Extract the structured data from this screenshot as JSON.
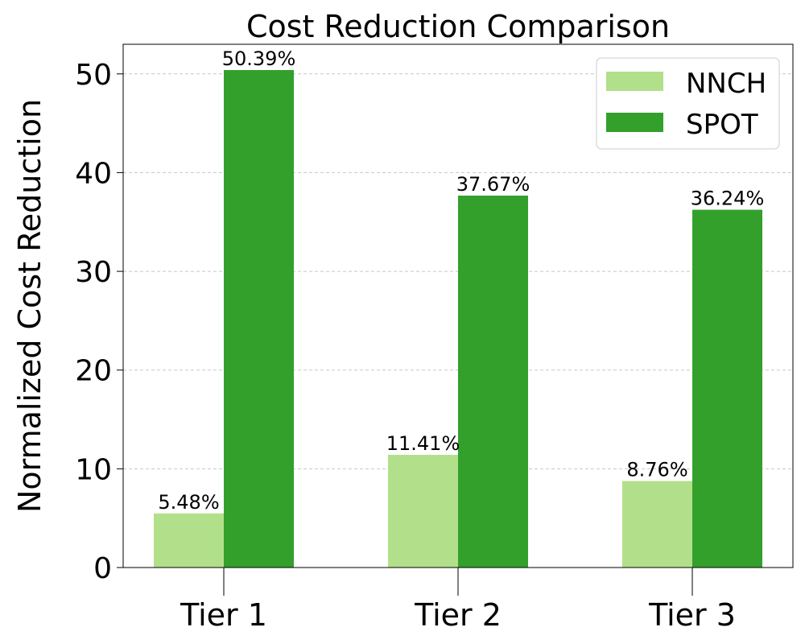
{
  "chart_data": {
    "type": "bar",
    "title": "Cost Reduction Comparison",
    "xlabel": "",
    "ylabel": "Normalized Cost Reduction",
    "categories": [
      "Tier 1",
      "Tier 2",
      "Tier 3"
    ],
    "series": [
      {
        "name": "NNCH",
        "color": "#b2df8a",
        "values": [
          5.48,
          11.41,
          8.76
        ],
        "labels": [
          "5.48%",
          "11.41%",
          "8.76%"
        ]
      },
      {
        "name": "SPOT",
        "color": "#33a02c",
        "values": [
          50.39,
          37.67,
          36.24
        ],
        "labels": [
          "50.39%",
          "37.67%",
          "36.24%"
        ]
      }
    ],
    "ylim": [
      0,
      53
    ],
    "yticks": [
      0,
      10,
      20,
      30,
      40,
      50
    ],
    "ytick_labels": [
      "0",
      "10",
      "20",
      "30",
      "40",
      "50"
    ],
    "grid": true,
    "legend_position": "top-right"
  }
}
